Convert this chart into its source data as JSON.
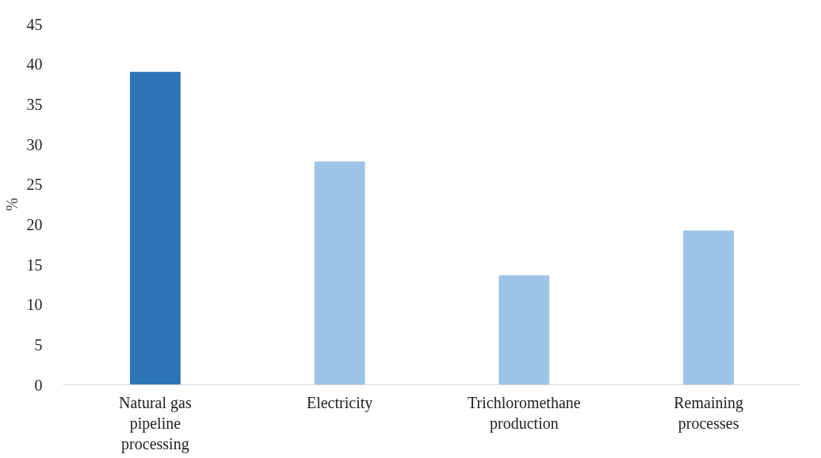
{
  "chart_data": {
    "type": "bar",
    "ylabel": "%",
    "categories": [
      "Natural gas\npipeline\nprocessing",
      "Electricity",
      "Trichloromethane\nproduction",
      "Remaining\nprocesses"
    ],
    "values": [
      39.0,
      27.8,
      13.6,
      19.2
    ],
    "colors": [
      "#2e75b6",
      "#9dc3e6",
      "#9dc3e6",
      "#9dc3e6"
    ],
    "ylim": [
      0,
      45
    ],
    "yticks": [
      0,
      5,
      10,
      15,
      20,
      25,
      30,
      35,
      40,
      45
    ],
    "grid": false
  }
}
